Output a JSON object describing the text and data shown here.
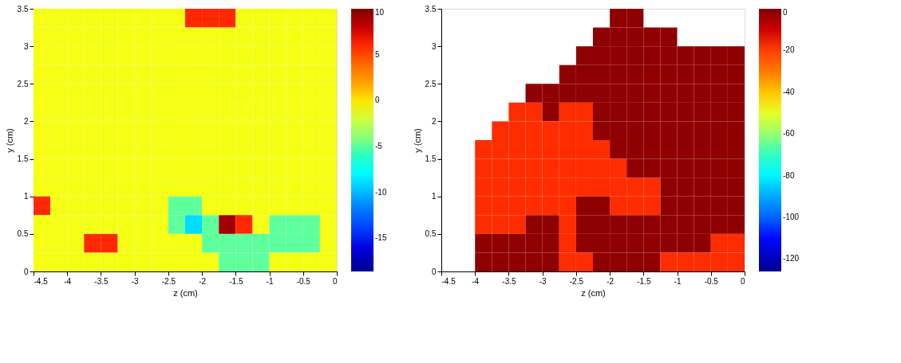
{
  "chart_data": [
    {
      "type": "heatmap",
      "xlabel": "z (cm)",
      "ylabel": "y (cm)",
      "x": [
        -4.375,
        -4.125,
        -3.875,
        -3.625,
        -3.375,
        -3.125,
        -2.875,
        -2.625,
        -2.375,
        -2.125,
        -1.875,
        -1.625,
        -1.375,
        -1.125,
        -0.875,
        -0.625,
        -0.375,
        -0.125
      ],
      "xlim": [
        -4.5,
        0
      ],
      "xticks": [
        -4.5,
        -4,
        -3.5,
        -3,
        -2.5,
        -2,
        -1.5,
        -1,
        -0.5,
        0
      ],
      "ylim": [
        0,
        3.5
      ],
      "yticks": [
        0,
        0.5,
        1,
        1.5,
        2,
        2.5,
        3,
        3.5
      ],
      "clim": [
        -18.6,
        10
      ],
      "cticks": [
        -15,
        -10,
        -5,
        0,
        5,
        10
      ],
      "grid": false,
      "cells": [
        [
          -1,
          -1,
          -1,
          -1,
          -1,
          -1,
          -1,
          -1,
          -1,
          6,
          6,
          6,
          -1,
          -1,
          -1,
          -1,
          -1,
          -1
        ],
        [
          -1,
          -1,
          -1,
          -1,
          -1,
          -1,
          -1,
          -1,
          -1,
          -1,
          -1,
          -1,
          -1,
          -1,
          -1,
          -1,
          -1,
          -1
        ],
        [
          -1,
          -1,
          -1,
          -1,
          -1,
          -1,
          -1,
          -1,
          -1,
          -1,
          -1,
          -1,
          -1,
          -1,
          -1,
          -1,
          -1,
          -1
        ],
        [
          -1,
          -1,
          -1,
          -1,
          -1,
          -1,
          -1,
          -1,
          -1,
          -1,
          -1,
          -1,
          -1,
          -1,
          -1,
          -1,
          -1,
          -1
        ],
        [
          -1,
          -1,
          -1,
          -1,
          -1,
          -1,
          -1,
          -1,
          -1,
          -1,
          -1,
          -1,
          -1,
          -1,
          -1,
          -1,
          -1,
          -1
        ],
        [
          -1,
          -1,
          -1,
          -1,
          -1,
          -1,
          -1,
          -1,
          -1,
          -1,
          -1,
          -1,
          -1,
          -1,
          -1,
          -1,
          -1,
          -1
        ],
        [
          -1,
          -1,
          -1,
          -1,
          -1,
          -1,
          -1,
          -1,
          -1,
          -1,
          -1,
          -1,
          -1,
          -1,
          -1,
          -1,
          -1,
          -1
        ],
        [
          -1,
          -1,
          -1,
          -1,
          -1,
          -1,
          -1,
          -1,
          -1,
          -1,
          -1,
          -1,
          -1,
          -1,
          -1,
          -1,
          -1,
          -1
        ],
        [
          -1,
          -1,
          -1,
          -1,
          -1,
          -1,
          -1,
          -1,
          -1,
          -1,
          -1,
          -1,
          -1,
          -1,
          -1,
          -1,
          -1,
          -1
        ],
        [
          -1,
          -1,
          -1,
          -1,
          -1,
          -1,
          -1,
          -1,
          -1,
          -1,
          -1,
          -1,
          -1,
          -1,
          -1,
          -1,
          -1,
          -1
        ],
        [
          6,
          -1,
          -1,
          -1,
          -1,
          -1,
          -1,
          -1,
          -5,
          -5,
          -1,
          -1,
          -1,
          -1,
          -1,
          -1,
          -1,
          -1
        ],
        [
          -1,
          -1,
          -1,
          -1,
          -1,
          -1,
          -1,
          -1,
          -5,
          -9,
          -5,
          9,
          6,
          -1,
          -5,
          -5,
          -5,
          -1
        ],
        [
          -1,
          -1,
          -1,
          6,
          6,
          -1,
          -1,
          -1,
          -1,
          -1,
          -5,
          -5,
          -5,
          -5,
          -5,
          -5,
          -5,
          -1
        ],
        [
          -1,
          -1,
          -1,
          -1,
          -1,
          -1,
          -1,
          -1,
          -1,
          -1,
          -1,
          -5,
          -5,
          -5,
          -1,
          -1,
          -1,
          -1
        ]
      ]
    },
    {
      "type": "heatmap",
      "xlabel": "z (cm)",
      "ylabel": "y (cm)",
      "x": [
        -4.375,
        -4.125,
        -3.875,
        -3.625,
        -3.375,
        -3.125,
        -2.875,
        -2.625,
        -2.375,
        -2.125,
        -1.875,
        -1.625,
        -1.375,
        -1.125,
        -0.875,
        -0.625,
        -0.375,
        -0.125
      ],
      "xlim": [
        -4.5,
        0
      ],
      "xticks": [
        -4.5,
        -4,
        -3.5,
        -3,
        -2.5,
        -2,
        -1.5,
        -1,
        -0.5,
        0
      ],
      "ylim": [
        0,
        3.5
      ],
      "yticks": [
        0,
        0.5,
        1,
        1.5,
        2,
        2.5,
        3,
        3.5
      ],
      "clim": [
        -126,
        0
      ],
      "cticks": [
        -120,
        -100,
        -80,
        -60,
        -40,
        -20,
        0
      ],
      "grid": false,
      "cells": [
        [
          null,
          null,
          null,
          null,
          null,
          null,
          null,
          null,
          null,
          null,
          -2,
          -2,
          null,
          null,
          null,
          null,
          null,
          null
        ],
        [
          null,
          null,
          null,
          null,
          null,
          null,
          null,
          null,
          null,
          -2,
          -2,
          -2,
          -2,
          -2,
          null,
          null,
          null,
          null
        ],
        [
          null,
          null,
          null,
          null,
          null,
          null,
          null,
          null,
          -2,
          -2,
          -2,
          -2,
          -2,
          -2,
          -2,
          -2,
          -2,
          -2
        ],
        [
          null,
          null,
          null,
          null,
          null,
          null,
          null,
          -2,
          -2,
          -2,
          -2,
          -2,
          -2,
          -2,
          -2,
          -2,
          -2,
          -2
        ],
        [
          null,
          null,
          null,
          null,
          null,
          -2,
          -2,
          -2,
          -2,
          -2,
          -2,
          -2,
          -2,
          -2,
          -2,
          -2,
          -2,
          -2
        ],
        [
          null,
          null,
          null,
          null,
          -18,
          -18,
          -2,
          -18,
          -18,
          -2,
          -2,
          -2,
          -2,
          -2,
          -2,
          -2,
          -2,
          -2
        ],
        [
          null,
          null,
          null,
          -18,
          -18,
          -18,
          -18,
          -18,
          -18,
          -2,
          -2,
          -2,
          -2,
          -2,
          -2,
          -2,
          -2,
          -2
        ],
        [
          null,
          null,
          -18,
          -18,
          -18,
          -18,
          -18,
          -18,
          -18,
          -18,
          -2,
          -2,
          -2,
          -2,
          -2,
          -2,
          -2,
          -2
        ],
        [
          null,
          null,
          -18,
          -18,
          -18,
          -18,
          -18,
          -18,
          -18,
          -18,
          -18,
          -2,
          -2,
          -2,
          -2,
          -2,
          -2,
          -2
        ],
        [
          null,
          null,
          -18,
          -18,
          -18,
          -18,
          -18,
          -18,
          -18,
          -18,
          -18,
          -18,
          -18,
          -2,
          -2,
          -2,
          -2,
          -2
        ],
        [
          null,
          null,
          -18,
          -18,
          -18,
          -18,
          -18,
          -18,
          -2,
          -2,
          -18,
          -18,
          -18,
          -2,
          -2,
          -2,
          -2,
          -2
        ],
        [
          null,
          null,
          -18,
          -18,
          -18,
          -2,
          -2,
          -18,
          -2,
          -2,
          -2,
          -2,
          -2,
          -2,
          -2,
          -2,
          -2,
          -2
        ],
        [
          null,
          null,
          -2,
          -2,
          -2,
          -2,
          -2,
          -18,
          -2,
          -2,
          -2,
          -2,
          -2,
          -2,
          -2,
          -2,
          -18,
          -18
        ],
        [
          null,
          null,
          -2,
          -2,
          -2,
          -2,
          -2,
          -18,
          -18,
          -2,
          -2,
          -2,
          -2,
          -18,
          -18,
          -18,
          -18,
          -18
        ]
      ]
    }
  ]
}
